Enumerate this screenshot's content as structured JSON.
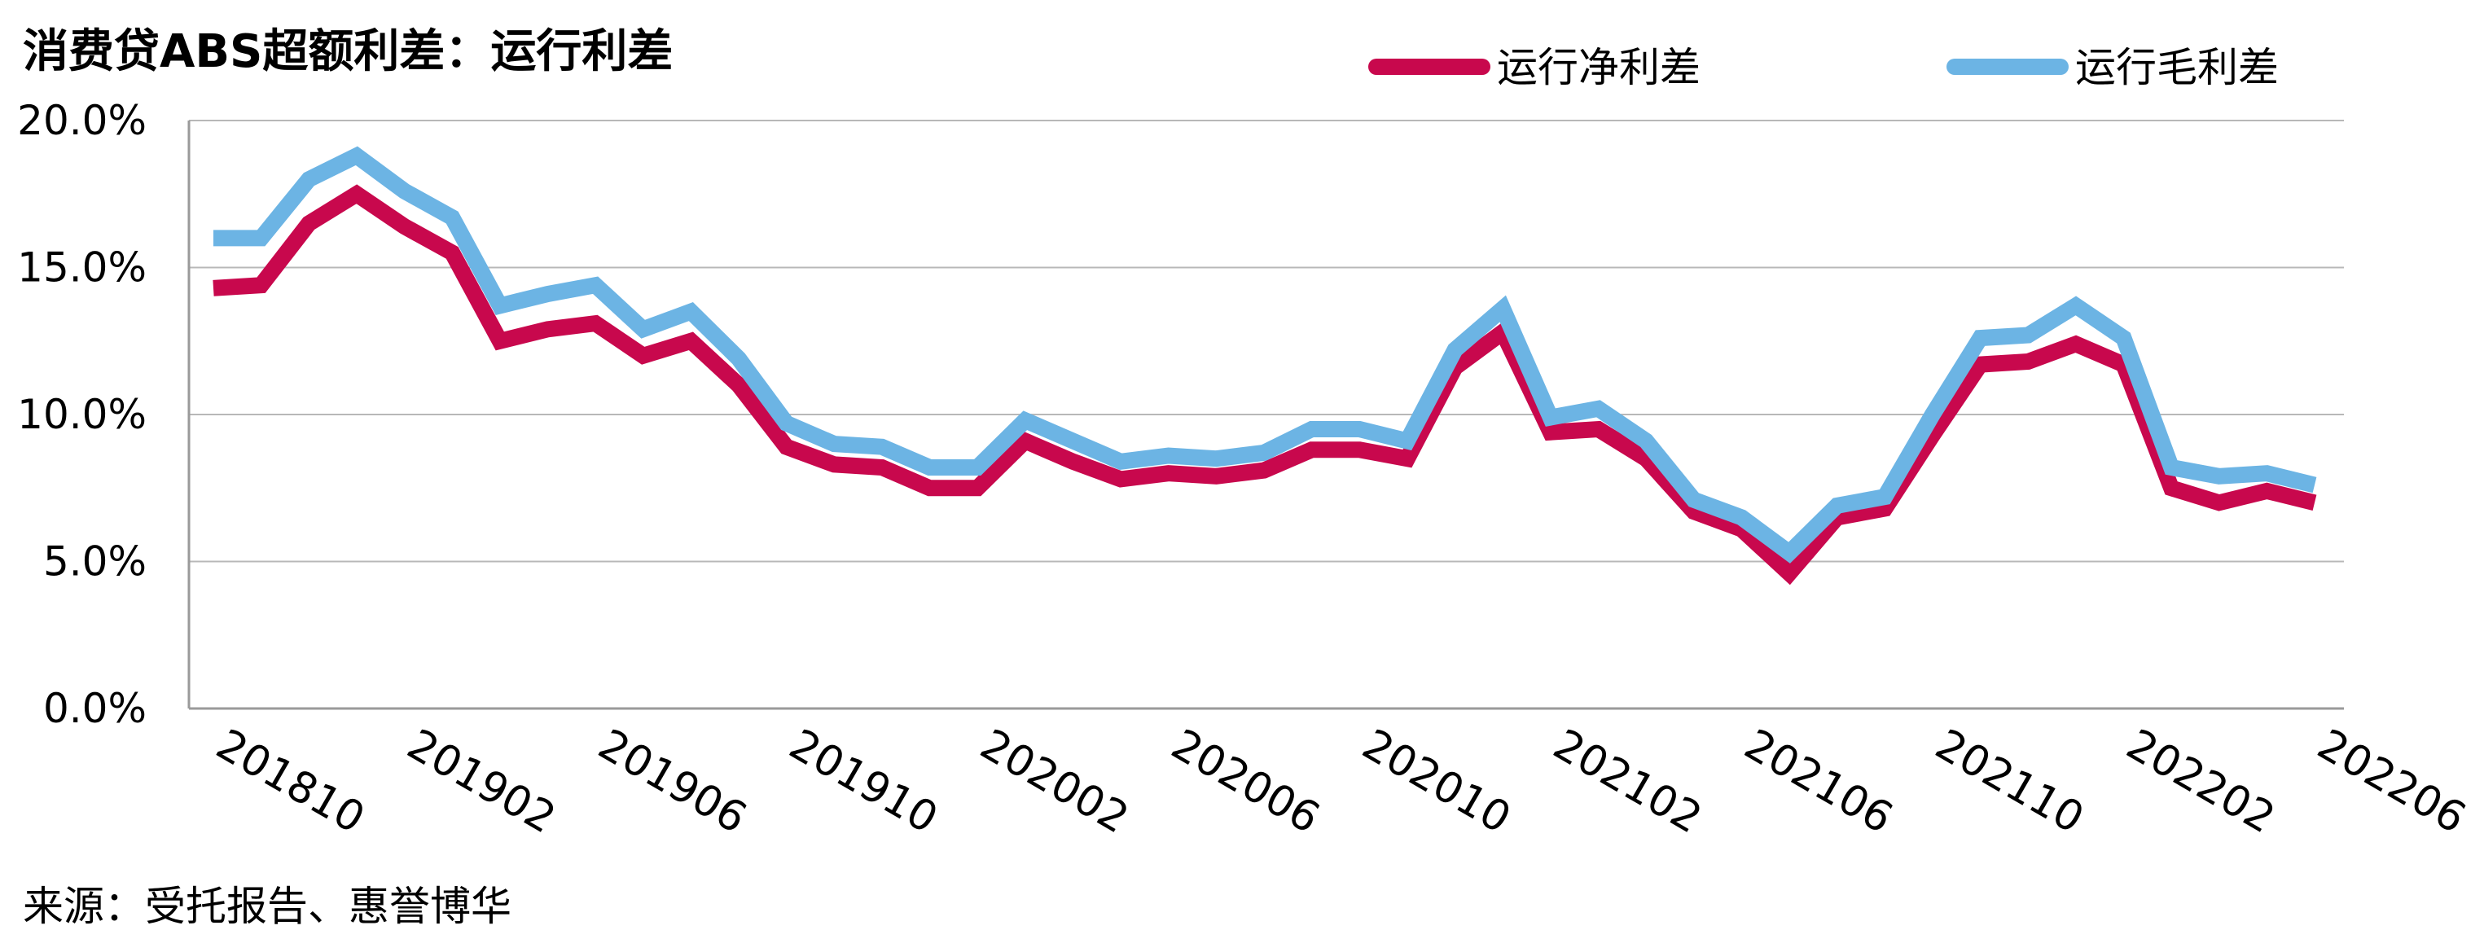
{
  "chart_data": {
    "type": "line",
    "title": "消费贷ABS超额利差：运行利差",
    "source": "来源：受托报告、惠誉博华",
    "xlabel": "",
    "ylabel": "",
    "ylim": [
      0,
      20
    ],
    "yticks": [
      "0.0%",
      "5.0%",
      "10.0%",
      "15.0%",
      "20.0%"
    ],
    "grid": true,
    "legend_position": "top-right",
    "categories": [
      "201810",
      "201811",
      "201812",
      "201901",
      "201902",
      "201903",
      "201904",
      "201905",
      "201906",
      "201907",
      "201908",
      "201909",
      "201910",
      "201911",
      "201912",
      "202001",
      "202002",
      "202003",
      "202004",
      "202005",
      "202006",
      "202007",
      "202008",
      "202009",
      "202010",
      "202011",
      "202012",
      "202101",
      "202102",
      "202103",
      "202104",
      "202105",
      "202106",
      "202107",
      "202108",
      "202109",
      "202110",
      "202111",
      "202112",
      "202201",
      "202202",
      "202203",
      "202204",
      "202205",
      "202206"
    ],
    "tick_labels": [
      "201810",
      "201902",
      "201906",
      "201910",
      "202002",
      "202006",
      "202010",
      "202102",
      "202106",
      "202110",
      "202202",
      "202206"
    ],
    "series": [
      {
        "name": "运行净利差",
        "color": "#C8084D",
        "values": [
          14.3,
          14.4,
          16.5,
          17.5,
          16.4,
          15.5,
          12.5,
          12.9,
          13.1,
          12.0,
          12.5,
          11.0,
          8.9,
          8.3,
          8.2,
          7.5,
          7.5,
          9.1,
          8.4,
          7.8,
          8.0,
          7.9,
          8.1,
          8.8,
          8.8,
          8.5,
          11.6,
          12.8,
          9.4,
          9.5,
          8.5,
          6.7,
          6.1,
          4.6,
          6.5,
          6.8,
          9.3,
          11.7,
          11.8,
          12.4,
          11.7,
          7.5,
          7.0,
          7.4,
          7.0
        ]
      },
      {
        "name": "运行毛利差",
        "color": "#6CB4E4",
        "values": [
          16.0,
          16.0,
          18.0,
          18.8,
          17.6,
          16.7,
          13.7,
          14.1,
          14.4,
          12.9,
          13.5,
          11.9,
          9.7,
          9.0,
          8.9,
          8.2,
          8.2,
          9.8,
          9.1,
          8.4,
          8.6,
          8.5,
          8.7,
          9.5,
          9.5,
          9.1,
          12.2,
          13.6,
          9.9,
          10.2,
          9.1,
          7.1,
          6.5,
          5.3,
          6.9,
          7.2,
          10.0,
          12.6,
          12.7,
          13.7,
          12.6,
          8.2,
          7.9,
          8.0,
          7.6
        ]
      }
    ]
  }
}
